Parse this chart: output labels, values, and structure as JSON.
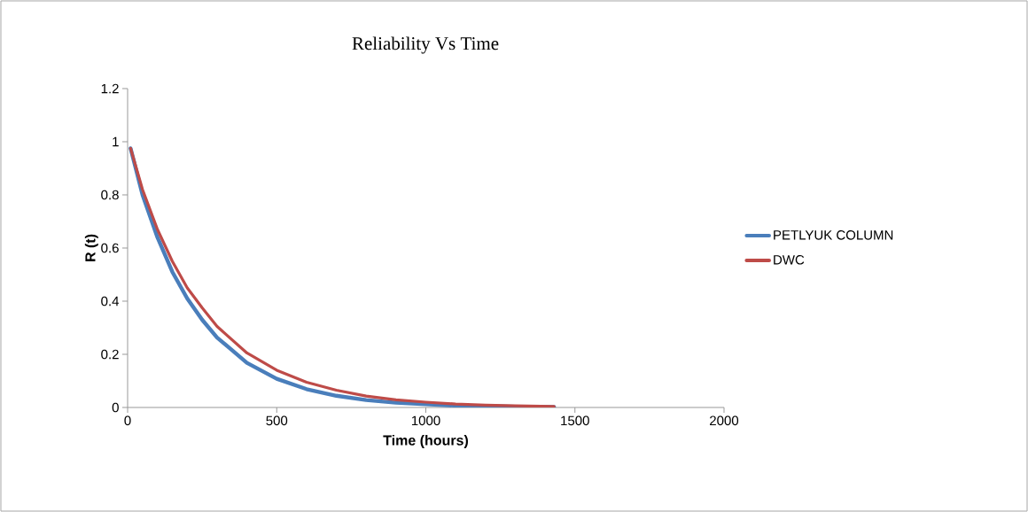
{
  "chart_data": {
    "type": "line",
    "title": "Reliability Vs Time",
    "xlabel": "Time (hours)",
    "ylabel": "R (t)",
    "xlim": [
      0,
      2000
    ],
    "xticks": [
      0,
      500,
      1000,
      1500,
      2000
    ],
    "ylim": [
      0,
      1.2
    ],
    "yticks": [
      0,
      0.2,
      0.4,
      0.6,
      0.8,
      1,
      1.2
    ],
    "grid": false,
    "legend": "right",
    "marker": "none",
    "line_style": "solid",
    "series": [
      {
        "name": "PETLYUK COLUMN",
        "color": "#4a7ebb",
        "x": [
          10,
          50,
          100,
          150,
          200,
          250,
          300,
          400,
          500,
          600,
          700,
          800,
          900,
          1000,
          1100,
          1200,
          1300,
          1430
        ],
        "values": [
          0.975,
          0.8,
          0.64,
          0.51,
          0.41,
          0.33,
          0.263,
          0.168,
          0.108,
          0.069,
          0.044,
          0.028,
          0.018,
          0.012,
          0.007,
          0.005,
          0.003,
          0.002
        ]
      },
      {
        "name": "DWC",
        "color": "#be4b48",
        "x": [
          10,
          50,
          100,
          150,
          200,
          250,
          300,
          400,
          500,
          600,
          700,
          800,
          900,
          1000,
          1100,
          1200,
          1300,
          1430
        ],
        "values": [
          0.975,
          0.82,
          0.67,
          0.55,
          0.45,
          0.375,
          0.305,
          0.205,
          0.14,
          0.095,
          0.065,
          0.043,
          0.029,
          0.02,
          0.013,
          0.009,
          0.006,
          0.004
        ]
      }
    ]
  }
}
